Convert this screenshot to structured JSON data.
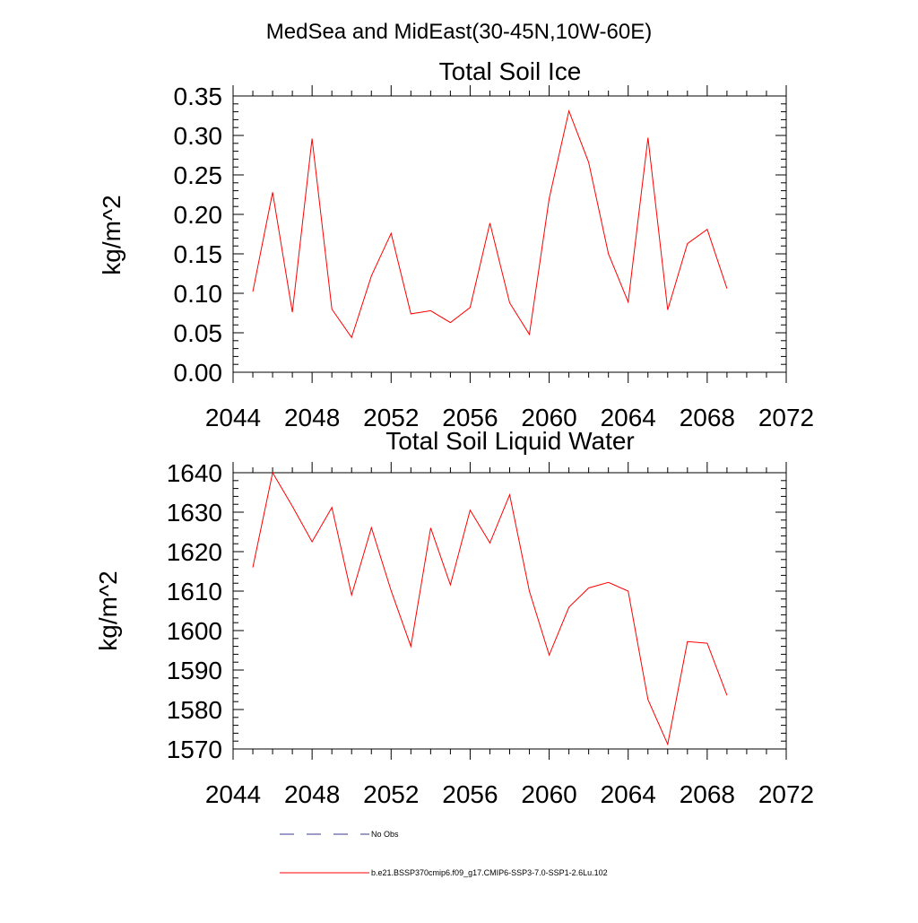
{
  "suptitle": "MedSea and MidEast(30-45N,10W-60E)",
  "chart_data": [
    {
      "type": "line",
      "title": "Total Soil Ice",
      "ylabel": "kg/m^2",
      "xlabel": "",
      "xlim": [
        2044,
        2072
      ],
      "ylim": [
        0,
        0.35
      ],
      "xticks": [
        2044,
        2048,
        2052,
        2056,
        2060,
        2064,
        2068,
        2072
      ],
      "xtick_labels": [
        "2044",
        "2048",
        "2052",
        "2056",
        "2060",
        "2064",
        "2068",
        "2072"
      ],
      "yticks": [
        0,
        0.05,
        0.1,
        0.15,
        0.2,
        0.25,
        0.3,
        0.35
      ],
      "ytick_labels": [
        "0.00",
        "0.05",
        "0.10",
        "0.15",
        "0.20",
        "0.25",
        "0.30",
        "0.35"
      ],
      "x": [
        2045,
        2046,
        2047,
        2048,
        2049,
        2050,
        2051,
        2052,
        2053,
        2054,
        2055,
        2056,
        2057,
        2058,
        2059,
        2060,
        2061,
        2062,
        2063,
        2064,
        2065,
        2066,
        2067,
        2068,
        2069
      ],
      "series": [
        {
          "name": "b.e21.BSSP370cmip6.f09_g17.CMIP6-SSP3-7.0-SSP1-2.6Lu.102",
          "color": "#ff0000",
          "values": [
            0.102,
            0.228,
            0.076,
            0.296,
            0.08,
            0.044,
            0.122,
            0.176,
            0.074,
            0.078,
            0.063,
            0.082,
            0.189,
            0.088,
            0.048,
            0.22,
            0.331,
            0.266,
            0.15,
            0.089,
            0.297,
            0.079,
            0.163,
            0.181,
            0.106
          ]
        }
      ]
    },
    {
      "type": "line",
      "title": "Total Soil Liquid Water",
      "ylabel": "kg/m^2",
      "xlabel": "",
      "xlim": [
        2044,
        2072
      ],
      "ylim": [
        1570,
        1640
      ],
      "xticks": [
        2044,
        2048,
        2052,
        2056,
        2060,
        2064,
        2068,
        2072
      ],
      "xtick_labels": [
        "2044",
        "2048",
        "2052",
        "2056",
        "2060",
        "2064",
        "2068",
        "2072"
      ],
      "yticks": [
        1570,
        1580,
        1590,
        1600,
        1610,
        1620,
        1630,
        1640
      ],
      "ytick_labels": [
        "1570",
        "1580",
        "1590",
        "1600",
        "1610",
        "1620",
        "1630",
        "1640"
      ],
      "x": [
        2045,
        2046,
        2047,
        2048,
        2049,
        2050,
        2051,
        2052,
        2053,
        2054,
        2055,
        2056,
        2057,
        2058,
        2059,
        2060,
        2061,
        2062,
        2063,
        2064,
        2065,
        2066,
        2067,
        2068,
        2069
      ],
      "series": [
        {
          "name": "b.e21.BSSP370cmip6.f09_g17.CMIP6-SSP3-7.0-SSP1-2.6Lu.102",
          "color": "#ff0000",
          "values": [
            1616.0,
            1640.0,
            1631.5,
            1622.5,
            1631.2,
            1609.0,
            1626.1,
            1610.1,
            1596.0,
            1626.0,
            1611.6,
            1630.5,
            1622.2,
            1634.4,
            1610.0,
            1593.8,
            1605.9,
            1610.8,
            1612.2,
            1610.0,
            1582.5,
            1571.2,
            1597.2,
            1596.8,
            1583.6
          ]
        }
      ]
    }
  ],
  "legend": [
    {
      "label": "No Obs",
      "color": "#3a3a8c",
      "dash": true
    },
    {
      "label": "b.e21.BSSP370cmip6.f09_g17.CMIP6-SSP3-7.0-SSP1-2.6Lu.102",
      "color": "#ff0000",
      "dash": false
    }
  ]
}
